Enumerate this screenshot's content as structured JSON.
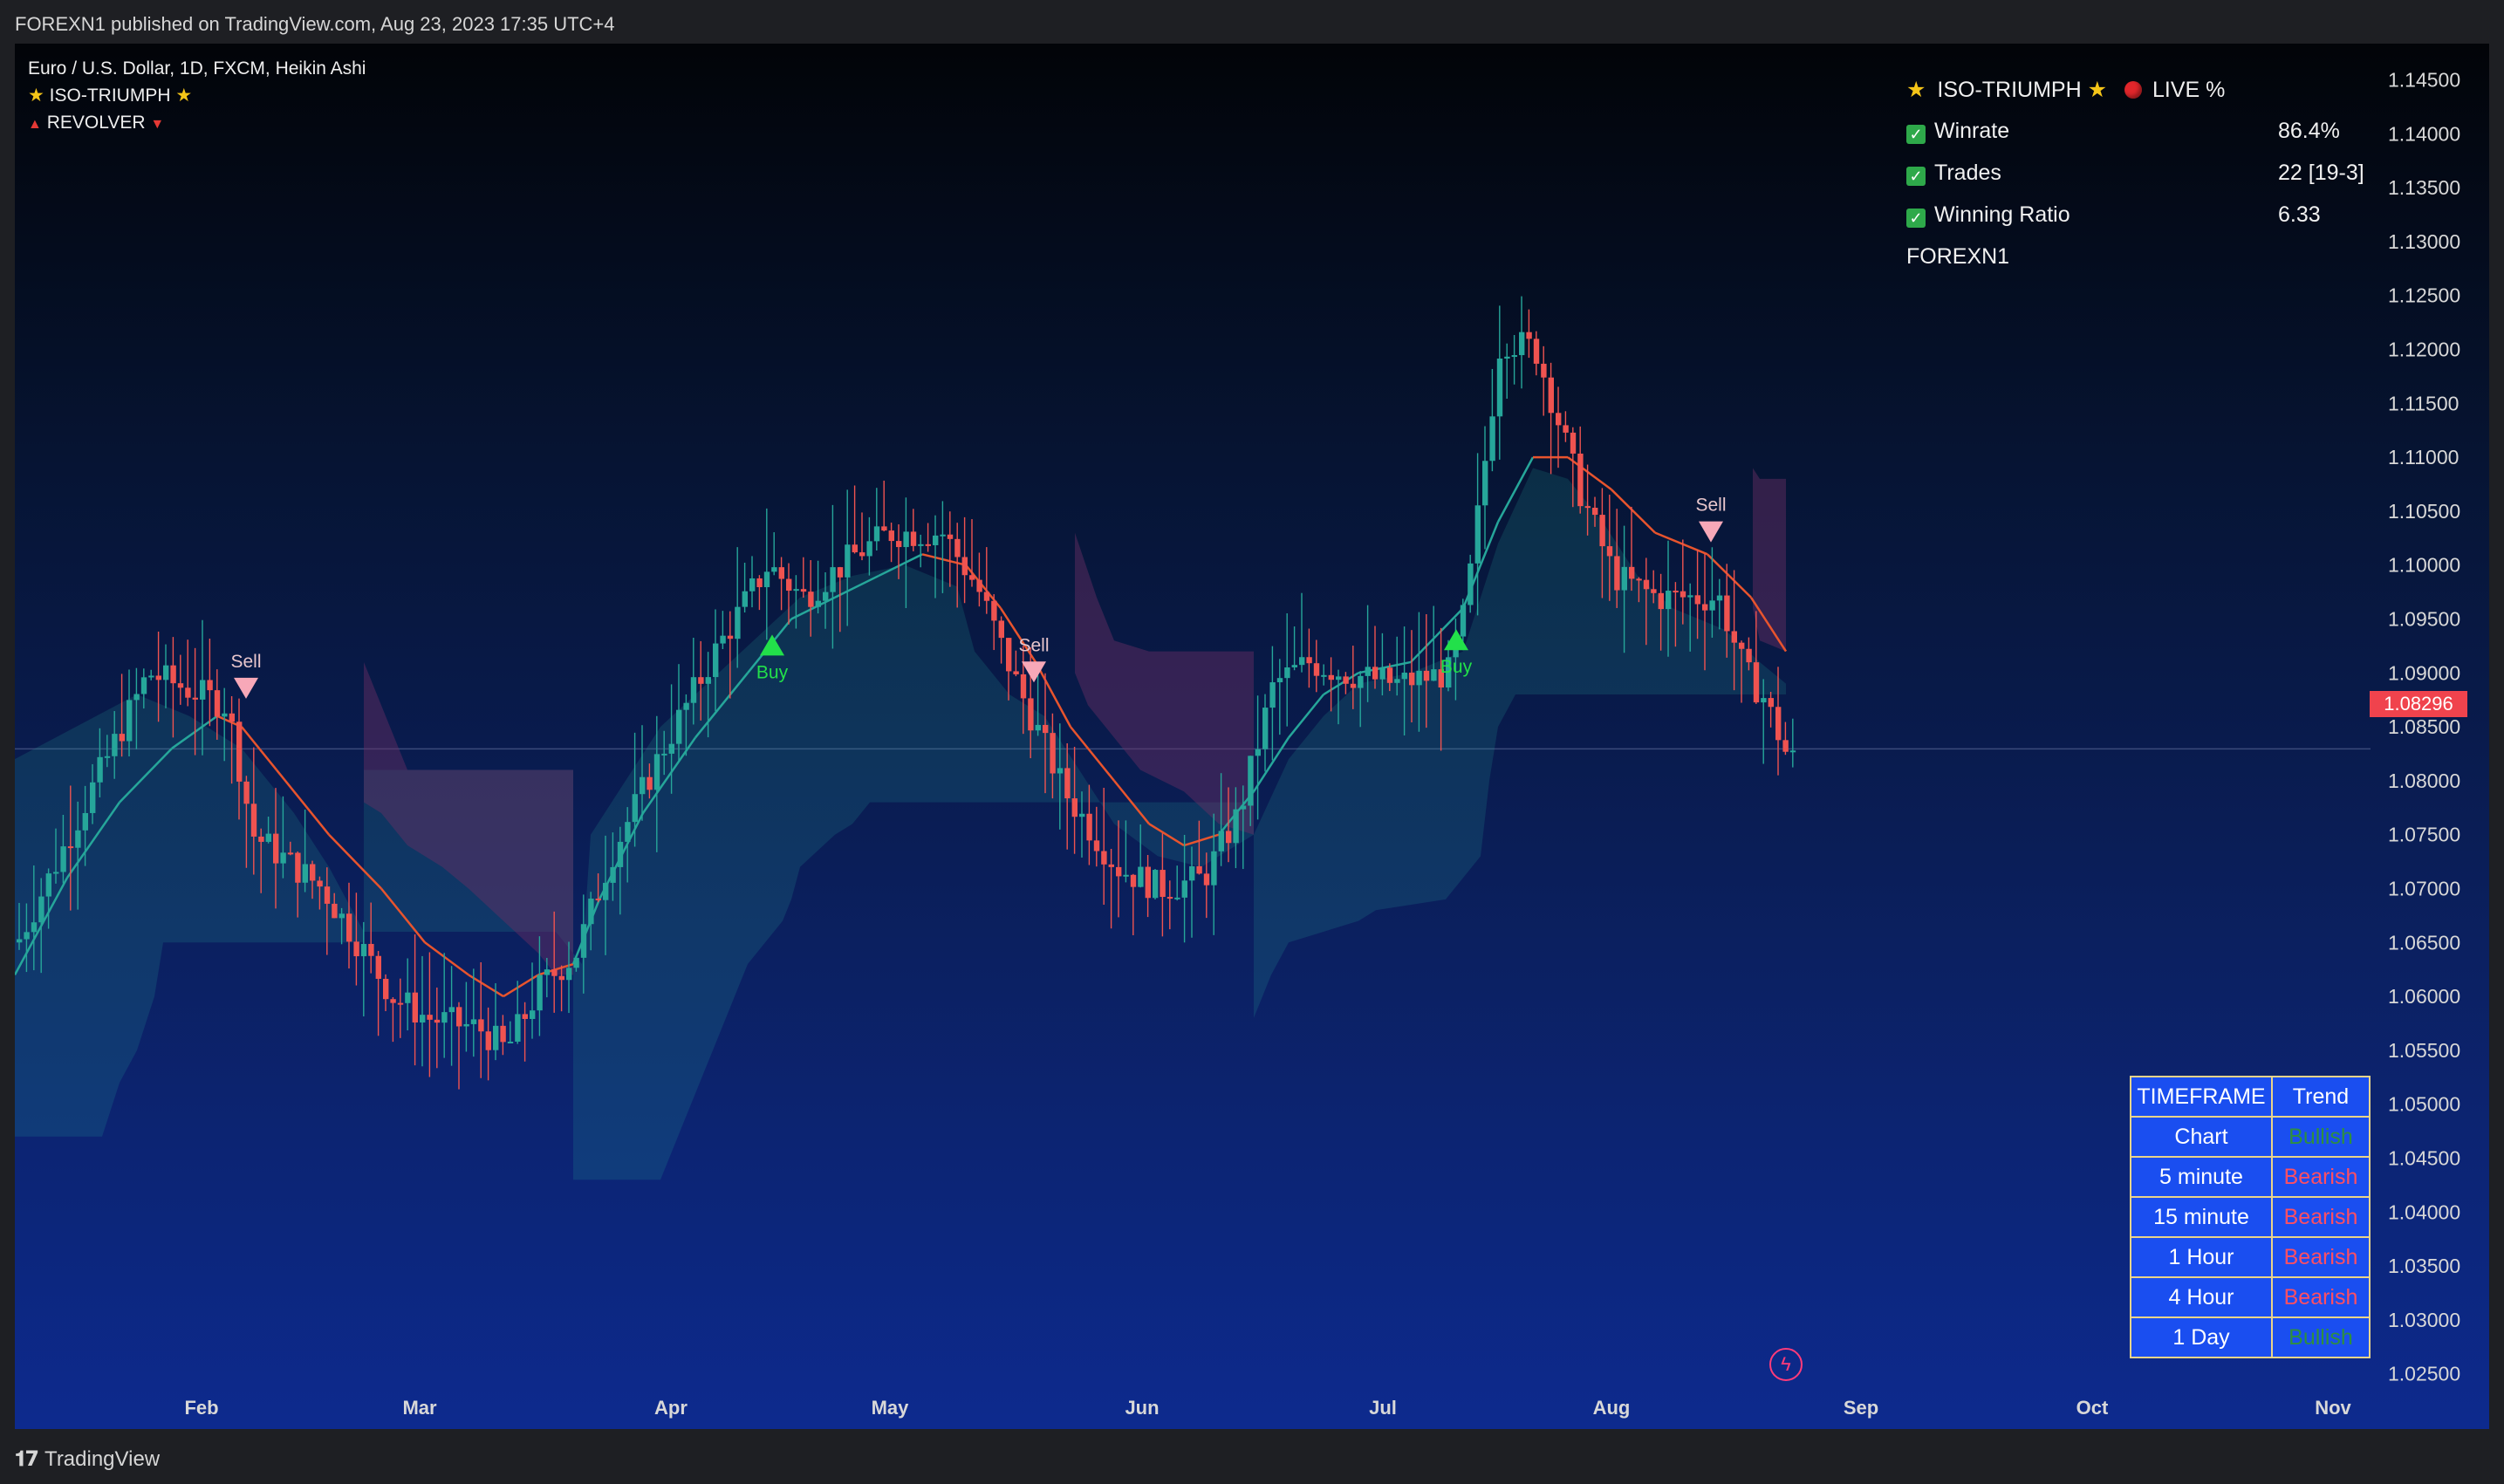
{
  "publish_header": "FOREXN1 published on TradingView.com, Aug 23, 2023 17:35 UTC+4",
  "legend": {
    "symbol": "Euro / U.S. Dollar, 1D, FXCM, Heikin Ashi",
    "indicator1": "ISO-TRIUMPH",
    "indicator2": "REVOLVER"
  },
  "stats_panel": {
    "title": "ISO-TRIUMPH",
    "live_label": "LIVE %",
    "winrate_label": "Winrate",
    "winrate_value": "86.4%",
    "trades_label": "Trades",
    "trades_value": "22 [19-3]",
    "ratio_label": "Winning Ratio",
    "ratio_value": "6.33",
    "author": "FOREXN1"
  },
  "trend_table": {
    "header_timeframe": "TIMEFRAME",
    "header_trend": "Trend",
    "rows": [
      {
        "timeframe": "Chart",
        "trend": "Bullish"
      },
      {
        "timeframe": "5 minute",
        "trend": "Bearish"
      },
      {
        "timeframe": "15 minute",
        "trend": "Bearish"
      },
      {
        "timeframe": "1 Hour",
        "trend": "Bearish"
      },
      {
        "timeframe": "4 Hour",
        "trend": "Bearish"
      },
      {
        "timeframe": "1 Day",
        "trend": "Bullish"
      }
    ]
  },
  "current_price": "1.08296",
  "price_axis": [
    "1.14500",
    "1.14000",
    "1.13500",
    "1.13000",
    "1.12500",
    "1.12000",
    "1.11500",
    "1.11000",
    "1.10500",
    "1.10000",
    "1.09500",
    "1.09000",
    "1.08500",
    "1.08000",
    "1.07500",
    "1.07000",
    "1.06500",
    "1.06000",
    "1.05500",
    "1.05000",
    "1.04500",
    "1.04000",
    "1.03500",
    "1.03000",
    "1.02500"
  ],
  "time_axis": [
    "Feb",
    "Mar",
    "Apr",
    "May",
    "Jun",
    "Jul",
    "Aug",
    "Sep",
    "Oct",
    "Nov"
  ],
  "footer_brand": "TradingView",
  "chart_data": {
    "type": "candlestick",
    "title": "Euro / U.S. Dollar, 1D, FXCM, Heikin Ashi",
    "y_range": [
      1.022,
      1.148
    ],
    "signals": [
      {
        "label": "Sell",
        "date": "Feb 2",
        "price": 1.0885
      },
      {
        "label": "Buy",
        "date": "Apr 12",
        "price": 1.0925
      },
      {
        "label": "Sell",
        "date": "May 10",
        "price": 1.09
      },
      {
        "label": "Buy",
        "date": "Jul 11",
        "price": 1.093
      },
      {
        "label": "Sell",
        "date": "Aug 17",
        "price": 1.103
      }
    ],
    "last_close": 1.08296,
    "colors": {
      "bull": "#26a69a",
      "bear": "#ef5350",
      "cloud": "#26a69a",
      "resistance": "#4a2a5a"
    }
  }
}
